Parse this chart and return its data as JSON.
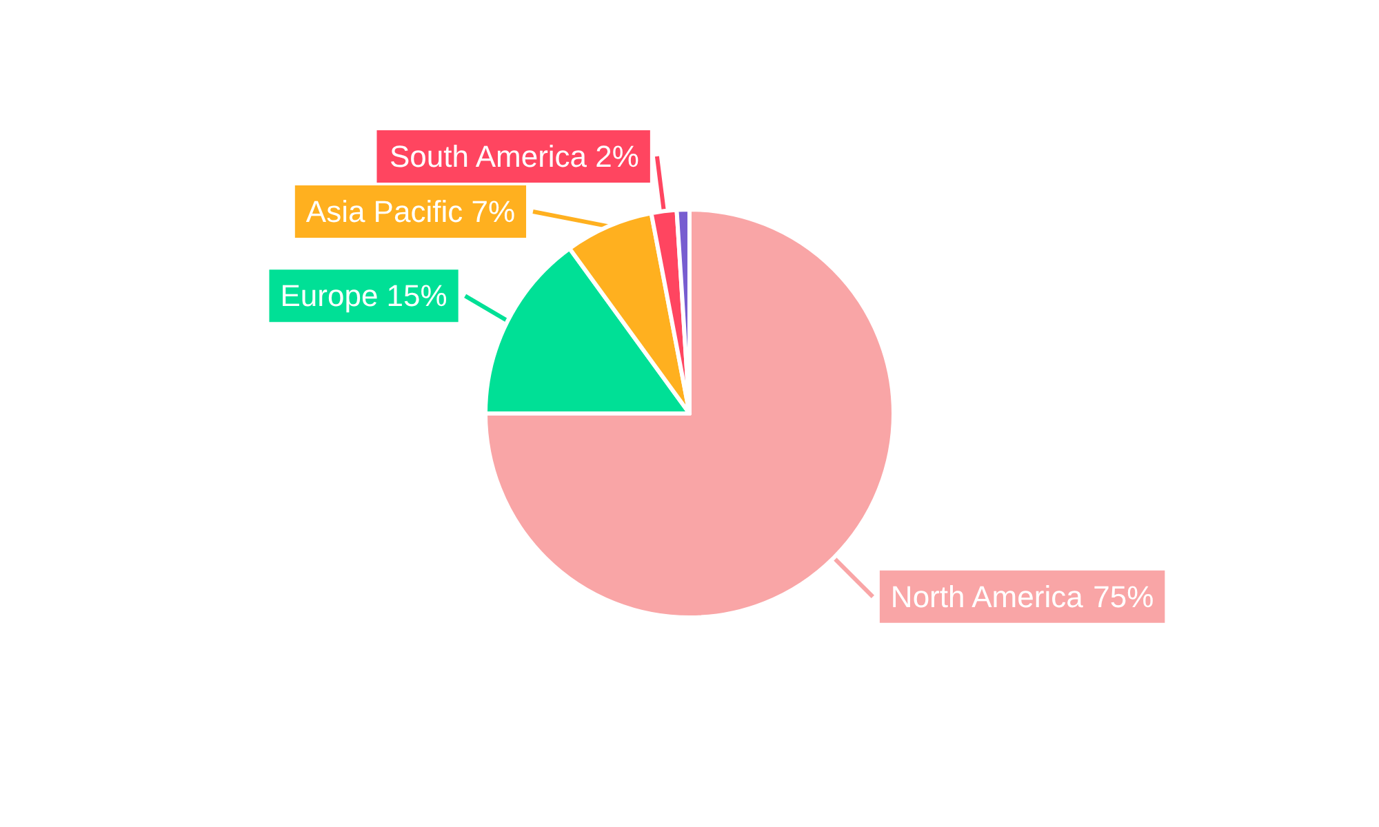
{
  "chart_data": {
    "type": "pie",
    "categories": [
      "North America",
      "Europe",
      "Asia Pacific",
      "South America",
      null
    ],
    "values": [
      75,
      15,
      7,
      2,
      1
    ],
    "value_labels": [
      "75%",
      "15%",
      "7%",
      "2%",
      null
    ],
    "colors": [
      "#f9a5a6",
      "#00e096",
      "#ffb01f",
      "#ff4560",
      "#775dd0"
    ],
    "legend": false
  }
}
